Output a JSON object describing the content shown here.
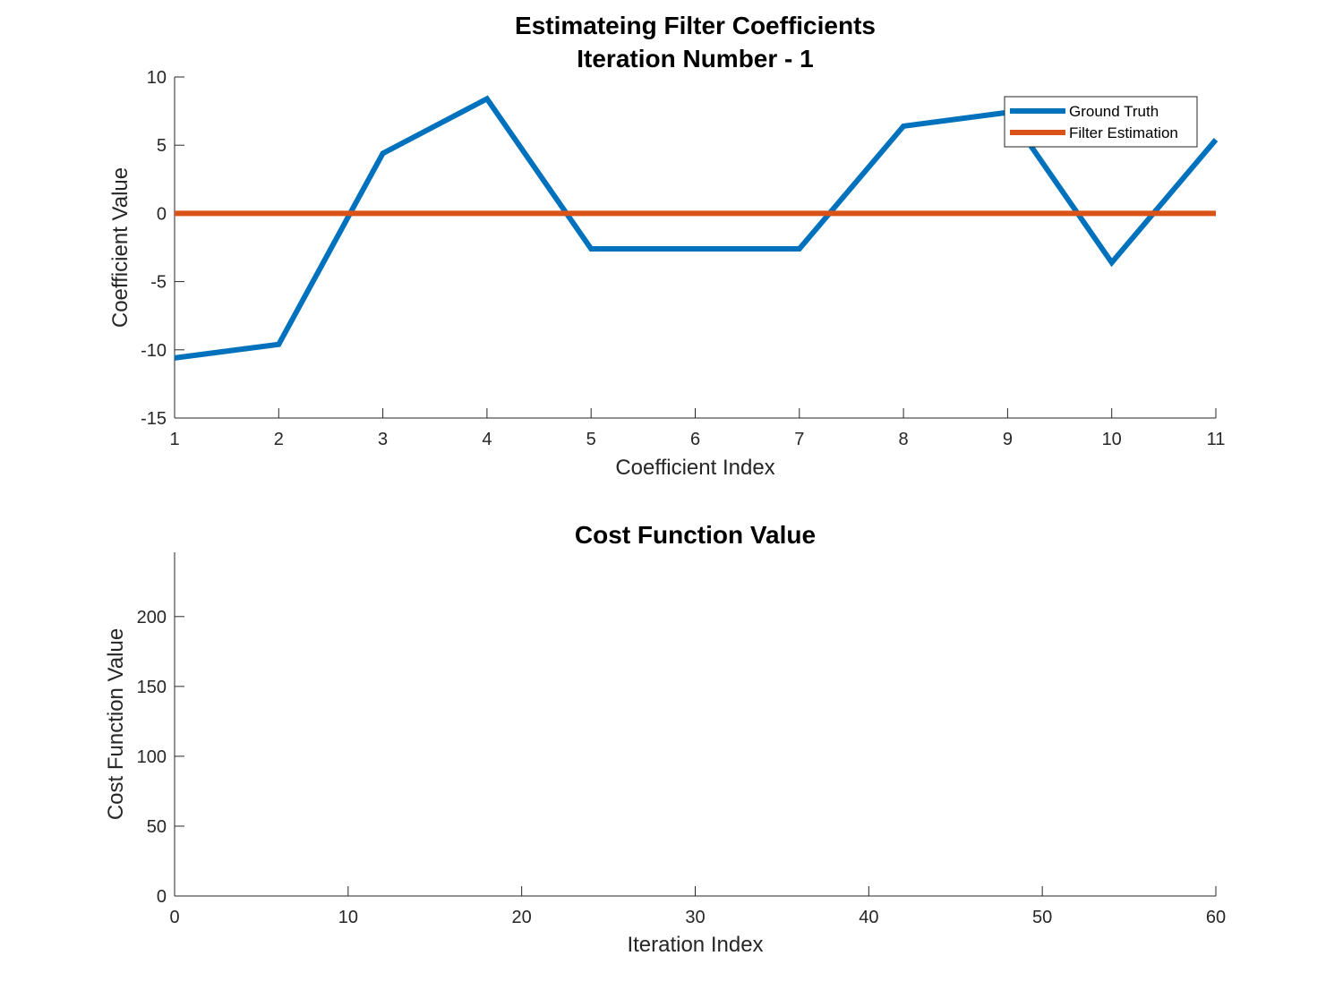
{
  "chart_data": [
    {
      "type": "line",
      "title": [
        "Estimateing Filter Coefficients",
        "Iteration Number - 1"
      ],
      "xlabel": "Coefficient Index",
      "ylabel": "Coefficient Value",
      "xlim": [
        1,
        11
      ],
      "ylim": [
        -15,
        10
      ],
      "xticks": [
        1,
        2,
        3,
        4,
        5,
        6,
        7,
        8,
        9,
        10,
        11
      ],
      "yticks": [
        -15,
        -10,
        -5,
        0,
        5,
        10
      ],
      "grid": false,
      "legend_position": "top-right",
      "series": [
        {
          "name": "Ground Truth",
          "color": "#0072BD",
          "x": [
            1,
            2,
            3,
            4,
            5,
            6,
            7,
            8,
            9,
            10,
            11
          ],
          "y": [
            -10.6,
            -9.6,
            4.4,
            8.4,
            -2.6,
            -2.6,
            -2.6,
            6.4,
            7.4,
            -3.6,
            5.4
          ]
        },
        {
          "name": "Filter Estimation",
          "color": "#D95319",
          "x": [
            1,
            2,
            3,
            4,
            5,
            6,
            7,
            8,
            9,
            10,
            11
          ],
          "y": [
            0,
            0,
            0,
            0,
            0,
            0,
            0,
            0,
            0,
            0,
            0
          ]
        }
      ]
    },
    {
      "type": "line",
      "title": [
        "Cost Function Value"
      ],
      "xlabel": "Iteration Index",
      "ylabel": "Cost Function Value",
      "xlim": [
        0,
        60
      ],
      "ylim": [
        0,
        246
      ],
      "xticks": [
        0,
        10,
        20,
        30,
        40,
        50,
        60
      ],
      "yticks": [
        0,
        50,
        100,
        150,
        200
      ],
      "grid": false,
      "series": []
    }
  ]
}
